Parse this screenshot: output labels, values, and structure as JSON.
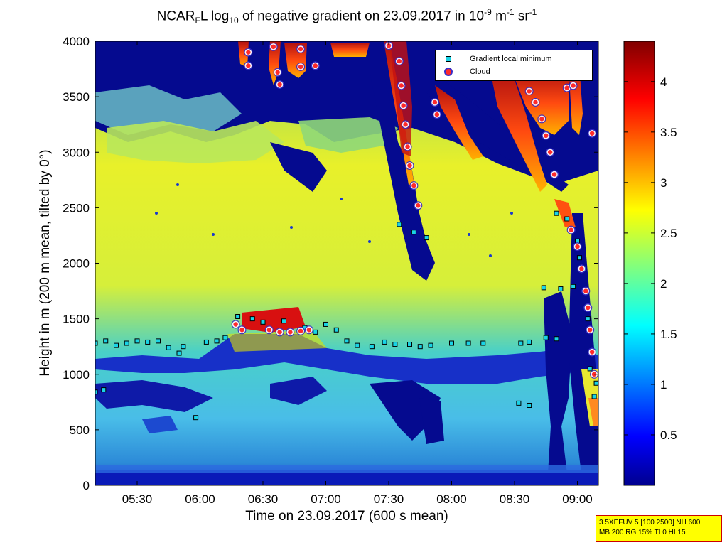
{
  "title": {
    "part1": "NCAR",
    "sub1": "F",
    "part2": "L log",
    "sub2": "10",
    "part3": " of negative gradient on 23.09.2017 in 10",
    "sup1": "-9",
    "part4": " m",
    "sup2": "-1",
    "part5": " sr",
    "sup3": "-1"
  },
  "xlabel": "Time on 23.09.2017 (600 s mean)",
  "ylabel": "Height in m (200 m mean, tilted by 0°)",
  "legend": {
    "items": [
      {
        "label": "Gradient local minimum",
        "marker": "square",
        "color": "#19d3e6"
      },
      {
        "label": "Cloud",
        "marker": "circle",
        "color": "#ff2a2a"
      }
    ]
  },
  "infobox": {
    "line1": "3.5XEFUV 5 [100 2500] NH 600",
    "line2": "MB 200 RG 15% TI 0 HI 15"
  },
  "chart_data": {
    "type": "heatmap",
    "x_unit": "time",
    "x_range": [
      "05:10",
      "09:10"
    ],
    "x_ticks": [
      "05:30",
      "06:00",
      "06:30",
      "07:00",
      "07:30",
      "08:00",
      "08:30",
      "09:00"
    ],
    "ylim": [
      0,
      4000
    ],
    "y_ticks": [
      0,
      500,
      1000,
      1500,
      2000,
      2500,
      3000,
      3500,
      4000
    ],
    "colorbar": {
      "range": [
        0,
        4.4
      ],
      "ticks": [
        0.5,
        1,
        1.5,
        2,
        2.5,
        3,
        3.5,
        4
      ],
      "colormap": "jet"
    },
    "legend_placement": "top-right",
    "series": [
      {
        "name": "Gradient local minimum",
        "points": [
          [
            "05:10",
            840
          ],
          [
            "05:14",
            860
          ],
          [
            "05:10",
            1280
          ],
          [
            "05:15",
            1300
          ],
          [
            "05:20",
            1260
          ],
          [
            "05:25",
            1280
          ],
          [
            "05:30",
            1300
          ],
          [
            "05:35",
            1290
          ],
          [
            "05:40",
            1300
          ],
          [
            "05:45",
            1240
          ],
          [
            "05:50",
            1190
          ],
          [
            "05:52",
            1250
          ],
          [
            "06:03",
            1290
          ],
          [
            "06:08",
            1300
          ],
          [
            "06:12",
            1330
          ],
          [
            "06:18",
            1520
          ],
          [
            "06:25",
            1500
          ],
          [
            "06:30",
            1470
          ],
          [
            "06:40",
            1480
          ],
          [
            "06:50",
            1420
          ],
          [
            "06:55",
            1380
          ],
          [
            "07:00",
            1450
          ],
          [
            "07:05",
            1400
          ],
          [
            "07:10",
            1300
          ],
          [
            "07:15",
            1260
          ],
          [
            "07:22",
            1250
          ],
          [
            "07:28",
            1290
          ],
          [
            "07:33",
            1270
          ],
          [
            "07:40",
            1270
          ],
          [
            "07:45",
            1250
          ],
          [
            "07:50",
            1260
          ],
          [
            "08:00",
            1280
          ],
          [
            "08:08",
            1280
          ],
          [
            "08:15",
            1280
          ],
          [
            "08:33",
            1280
          ],
          [
            "08:37",
            1290
          ],
          [
            "08:45",
            1330
          ],
          [
            "08:50",
            1320
          ],
          [
            "08:44",
            1780
          ],
          [
            "08:52",
            1770
          ],
          [
            "08:58",
            1790
          ],
          [
            "08:32",
            740
          ],
          [
            "08:37",
            720
          ],
          [
            "05:58",
            610
          ],
          [
            "07:35",
            2350
          ],
          [
            "07:42",
            2280
          ],
          [
            "07:48",
            2230
          ],
          [
            "08:50",
            2450
          ],
          [
            "08:55",
            2400
          ],
          [
            "09:00",
            2200
          ],
          [
            "09:01",
            2050
          ],
          [
            "09:03",
            1950
          ],
          [
            "09:05",
            1500
          ],
          [
            "09:06",
            1050
          ],
          [
            "09:08",
            800
          ],
          [
            "09:09",
            920
          ]
        ]
      },
      {
        "name": "Cloud",
        "points": [
          [
            "06:23",
            3780
          ],
          [
            "06:23",
            3900
          ],
          [
            "06:35",
            3950
          ],
          [
            "06:37",
            3720
          ],
          [
            "06:38",
            3610
          ],
          [
            "06:48",
            3930
          ],
          [
            "06:48",
            3770
          ],
          [
            "06:55",
            3780
          ],
          [
            "07:30",
            3960
          ],
          [
            "07:35",
            3820
          ],
          [
            "07:36",
            3600
          ],
          [
            "07:37",
            3420
          ],
          [
            "07:38",
            3250
          ],
          [
            "07:39",
            3050
          ],
          [
            "07:40",
            2880
          ],
          [
            "07:42",
            2700
          ],
          [
            "07:44",
            2520
          ],
          [
            "07:52",
            3450
          ],
          [
            "07:53",
            3340
          ],
          [
            "08:32",
            3790
          ],
          [
            "08:37",
            3550
          ],
          [
            "08:40",
            3450
          ],
          [
            "08:43",
            3300
          ],
          [
            "08:45",
            3150
          ],
          [
            "08:47",
            3000
          ],
          [
            "08:49",
            2800
          ],
          [
            "08:55",
            3580
          ],
          [
            "08:58",
            3600
          ],
          [
            "09:07",
            3170
          ],
          [
            "08:57",
            2300
          ],
          [
            "09:00",
            2150
          ],
          [
            "09:02",
            1950
          ],
          [
            "09:04",
            1750
          ],
          [
            "09:05",
            1600
          ],
          [
            "09:06",
            1400
          ],
          [
            "09:07",
            1200
          ],
          [
            "09:08",
            1000
          ],
          [
            "06:17",
            1450
          ],
          [
            "06:20",
            1400
          ],
          [
            "06:33",
            1400
          ],
          [
            "06:38",
            1380
          ],
          [
            "06:43",
            1380
          ],
          [
            "06:48",
            1390
          ],
          [
            "06:52",
            1400
          ]
        ]
      }
    ]
  }
}
